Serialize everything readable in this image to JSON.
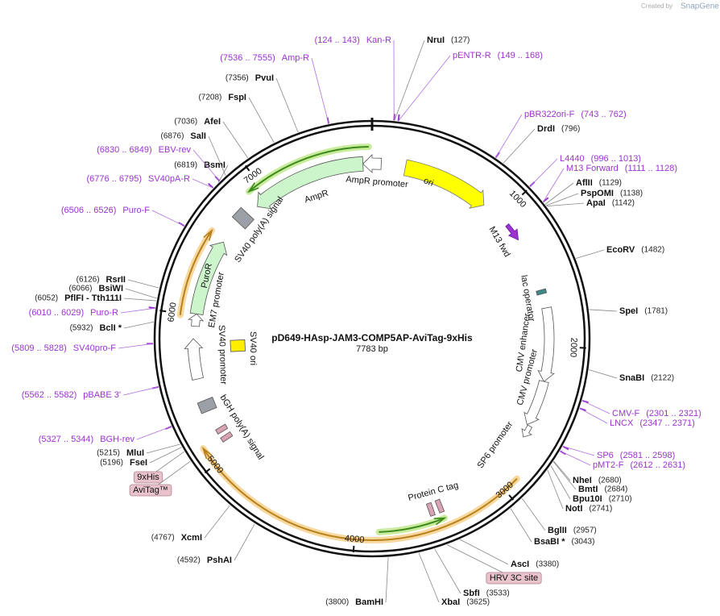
{
  "branding": {
    "created_by": "Created by",
    "brand": "SnapGene"
  },
  "map": {
    "title": "pD649-HAsp-JAM3-COMP5AP-AviTag-9xHis",
    "size": "7783 bp",
    "ticks": [
      1000,
      2000,
      3000,
      4000,
      5000,
      6000,
      7000
    ]
  },
  "enzymes": [
    {
      "name": "NruI",
      "position": "(127)"
    },
    {
      "name": "DrdI",
      "position": "(796)"
    },
    {
      "name": "AflII",
      "position": "(1129)"
    },
    {
      "name": "PspOMI",
      "position": "(1138)"
    },
    {
      "name": "ApaI",
      "position": "(1142)"
    },
    {
      "name": "EcoRV",
      "position": "(1482)"
    },
    {
      "name": "SpeI",
      "position": "(1781)"
    },
    {
      "name": "SnaBI",
      "position": "(2122)"
    },
    {
      "name": "NheI",
      "position": "(2680)"
    },
    {
      "name": "BmtI",
      "position": "(2684)"
    },
    {
      "name": "Bpu10I",
      "position": "(2710)"
    },
    {
      "name": "NotI",
      "position": "(2741)"
    },
    {
      "name": "BglII",
      "position": "(2957)"
    },
    {
      "name": "BsaBI *",
      "position": "(3043)"
    },
    {
      "name": "AscI",
      "position": "(3380)"
    },
    {
      "name": "SbfI",
      "position": "(3533)"
    },
    {
      "name": "XbaI",
      "position": "(3625)"
    },
    {
      "name": "BamHI",
      "position": "(3800)"
    },
    {
      "name": "PshAI",
      "position": "(4592)"
    },
    {
      "name": "XcmI",
      "position": "(4767)"
    },
    {
      "name": "FseI",
      "position": "(5196)"
    },
    {
      "name": "MluI",
      "position": "(5215)"
    },
    {
      "name": "BclI *",
      "position": "(5932)"
    },
    {
      "name": "PflFI  - Tth111I",
      "position": "(6052)"
    },
    {
      "name": "BsiWI",
      "position": "(6066)"
    },
    {
      "name": "RsrII",
      "position": "(6126)"
    },
    {
      "name": "BsmI",
      "position": "(6819)"
    },
    {
      "name": "SalI",
      "position": "(6876)"
    },
    {
      "name": "AfeI",
      "position": "(7036)"
    },
    {
      "name": "FspI",
      "position": "(7208)"
    },
    {
      "name": "PvuI",
      "position": "(7356)"
    }
  ],
  "primers": [
    {
      "name": "Kan-R",
      "range": "(124 .. 143)"
    },
    {
      "name": "pENTR-R",
      "range": "(149 .. 168)"
    },
    {
      "name": "pBR322ori-F",
      "range": "(743 .. 762)"
    },
    {
      "name": "L4440",
      "range": "(996 .. 1013)"
    },
    {
      "name": "M13 Forward",
      "range": "(1111 .. 1128)"
    },
    {
      "name": "CMV-F",
      "range": "(2301 .. 2321)"
    },
    {
      "name": "LNCX",
      "range": "(2347 .. 2371)"
    },
    {
      "name": "SP6",
      "range": "(2581 .. 2598)"
    },
    {
      "name": "pMT2-F",
      "range": "(2612 .. 2631)"
    },
    {
      "name": "Amp-R",
      "range": "(7536 .. 7555)"
    },
    {
      "name": "EBV-rev",
      "range": "(6830 .. 6849)"
    },
    {
      "name": "SV40pA-R",
      "range": "(6776 .. 6795)"
    },
    {
      "name": "Puro-F",
      "range": "(6506 .. 6526)"
    },
    {
      "name": "Puro-R",
      "range": "(6010 .. 6029)"
    },
    {
      "name": "SV40pro-F",
      "range": "(5809 .. 5828)"
    },
    {
      "name": "pBABE 3'",
      "range": "(5562 .. 5582)"
    },
    {
      "name": "BGH-rev",
      "range": "(5327 .. 5344)"
    }
  ],
  "features": [
    "ori",
    "AmpR promoter",
    "AmpR",
    "SV40 poly(A) signal",
    "PuroR",
    "EM7 promoter",
    "SV40 promoter",
    "SV40 ori",
    "bGH poly(A) signal",
    "Protein C tag",
    "SP6 promoter",
    "CMV promoter",
    "CMV enhancer",
    "lac operator",
    "M13 fwd"
  ],
  "tags": [
    "9xHis",
    "AviTag™",
    "HRV 3C site"
  ]
}
